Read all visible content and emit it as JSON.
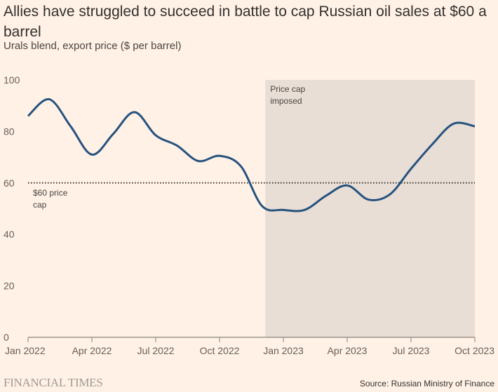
{
  "header": {
    "title": "Allies have struggled to succeed in battle to cap Russian oil sales at $60 a barrel",
    "subtitle": "Urals blend, export price ($ per barrel)"
  },
  "footer": {
    "logo": "FINANCIAL TIMES",
    "source": "Source: Russian Ministry of Finance"
  },
  "colors": {
    "background": "#fff1e5",
    "line": "#26527f",
    "shade": "#e9ded5",
    "axis": "#8a837e",
    "reference_line": "#33302e"
  },
  "chart_data": {
    "type": "line",
    "title": "Allies have struggled to succeed in battle to cap Russian oil sales at $60 a barrel",
    "subtitle": "Urals blend, export price ($ per barrel)",
    "xlabel": "",
    "ylabel": "",
    "ylim": [
      0,
      100
    ],
    "yticks": [
      0,
      20,
      40,
      60,
      80,
      100
    ],
    "ytick_labels": [
      "0",
      "20",
      "40",
      "60",
      "80",
      "100"
    ],
    "xlim_months": [
      0,
      21
    ],
    "xticks_months": [
      0,
      3,
      6,
      9,
      12,
      15,
      18,
      21
    ],
    "xtick_labels": [
      "Jan 2022",
      "Apr 2022",
      "Jul 2022",
      "Oct 2022",
      "Jan 2023",
      "Apr 2023",
      "Jul 2023",
      "Oct 2023"
    ],
    "grid": false,
    "series": [
      {
        "name": "Urals blend export price",
        "x_labels": [
          "Jan 2022",
          "Feb 2022",
          "Mar 2022",
          "Apr 2022",
          "May 2022",
          "Jun 2022",
          "Jul 2022",
          "Aug 2022",
          "Sep 2022",
          "Oct 2022",
          "Nov 2022",
          "Dec 2022",
          "Jan 2023",
          "Feb 2023",
          "Mar 2023",
          "Apr 2023",
          "May 2023",
          "Jun 2023",
          "Jul 2023",
          "Aug 2023",
          "Sep 2023",
          "Oct 2023"
        ],
        "x_months": [
          0,
          1,
          2,
          3,
          4,
          5,
          6,
          7,
          8,
          9,
          10,
          11,
          12,
          13,
          14,
          15,
          16,
          17,
          18,
          19,
          20,
          21
        ],
        "values": [
          86,
          92.5,
          82,
          71,
          79,
          87.5,
          78.5,
          74.5,
          68.5,
          70.5,
          66.5,
          51,
          49.5,
          49.5,
          55,
          59,
          53.5,
          55.5,
          65.5,
          75,
          83,
          82
        ]
      }
    ],
    "reference_line": {
      "value": 60,
      "label": "$60 price cap",
      "label_lines": [
        "$60 price",
        "cap"
      ],
      "style": "dotted"
    },
    "shaded_region": {
      "start_month": 11.15,
      "end_month": 21,
      "start_label": "Dec 2022",
      "end_label": "Oct 2023",
      "label": "Price cap imposed",
      "label_lines": [
        "Price cap",
        "imposed"
      ]
    }
  }
}
